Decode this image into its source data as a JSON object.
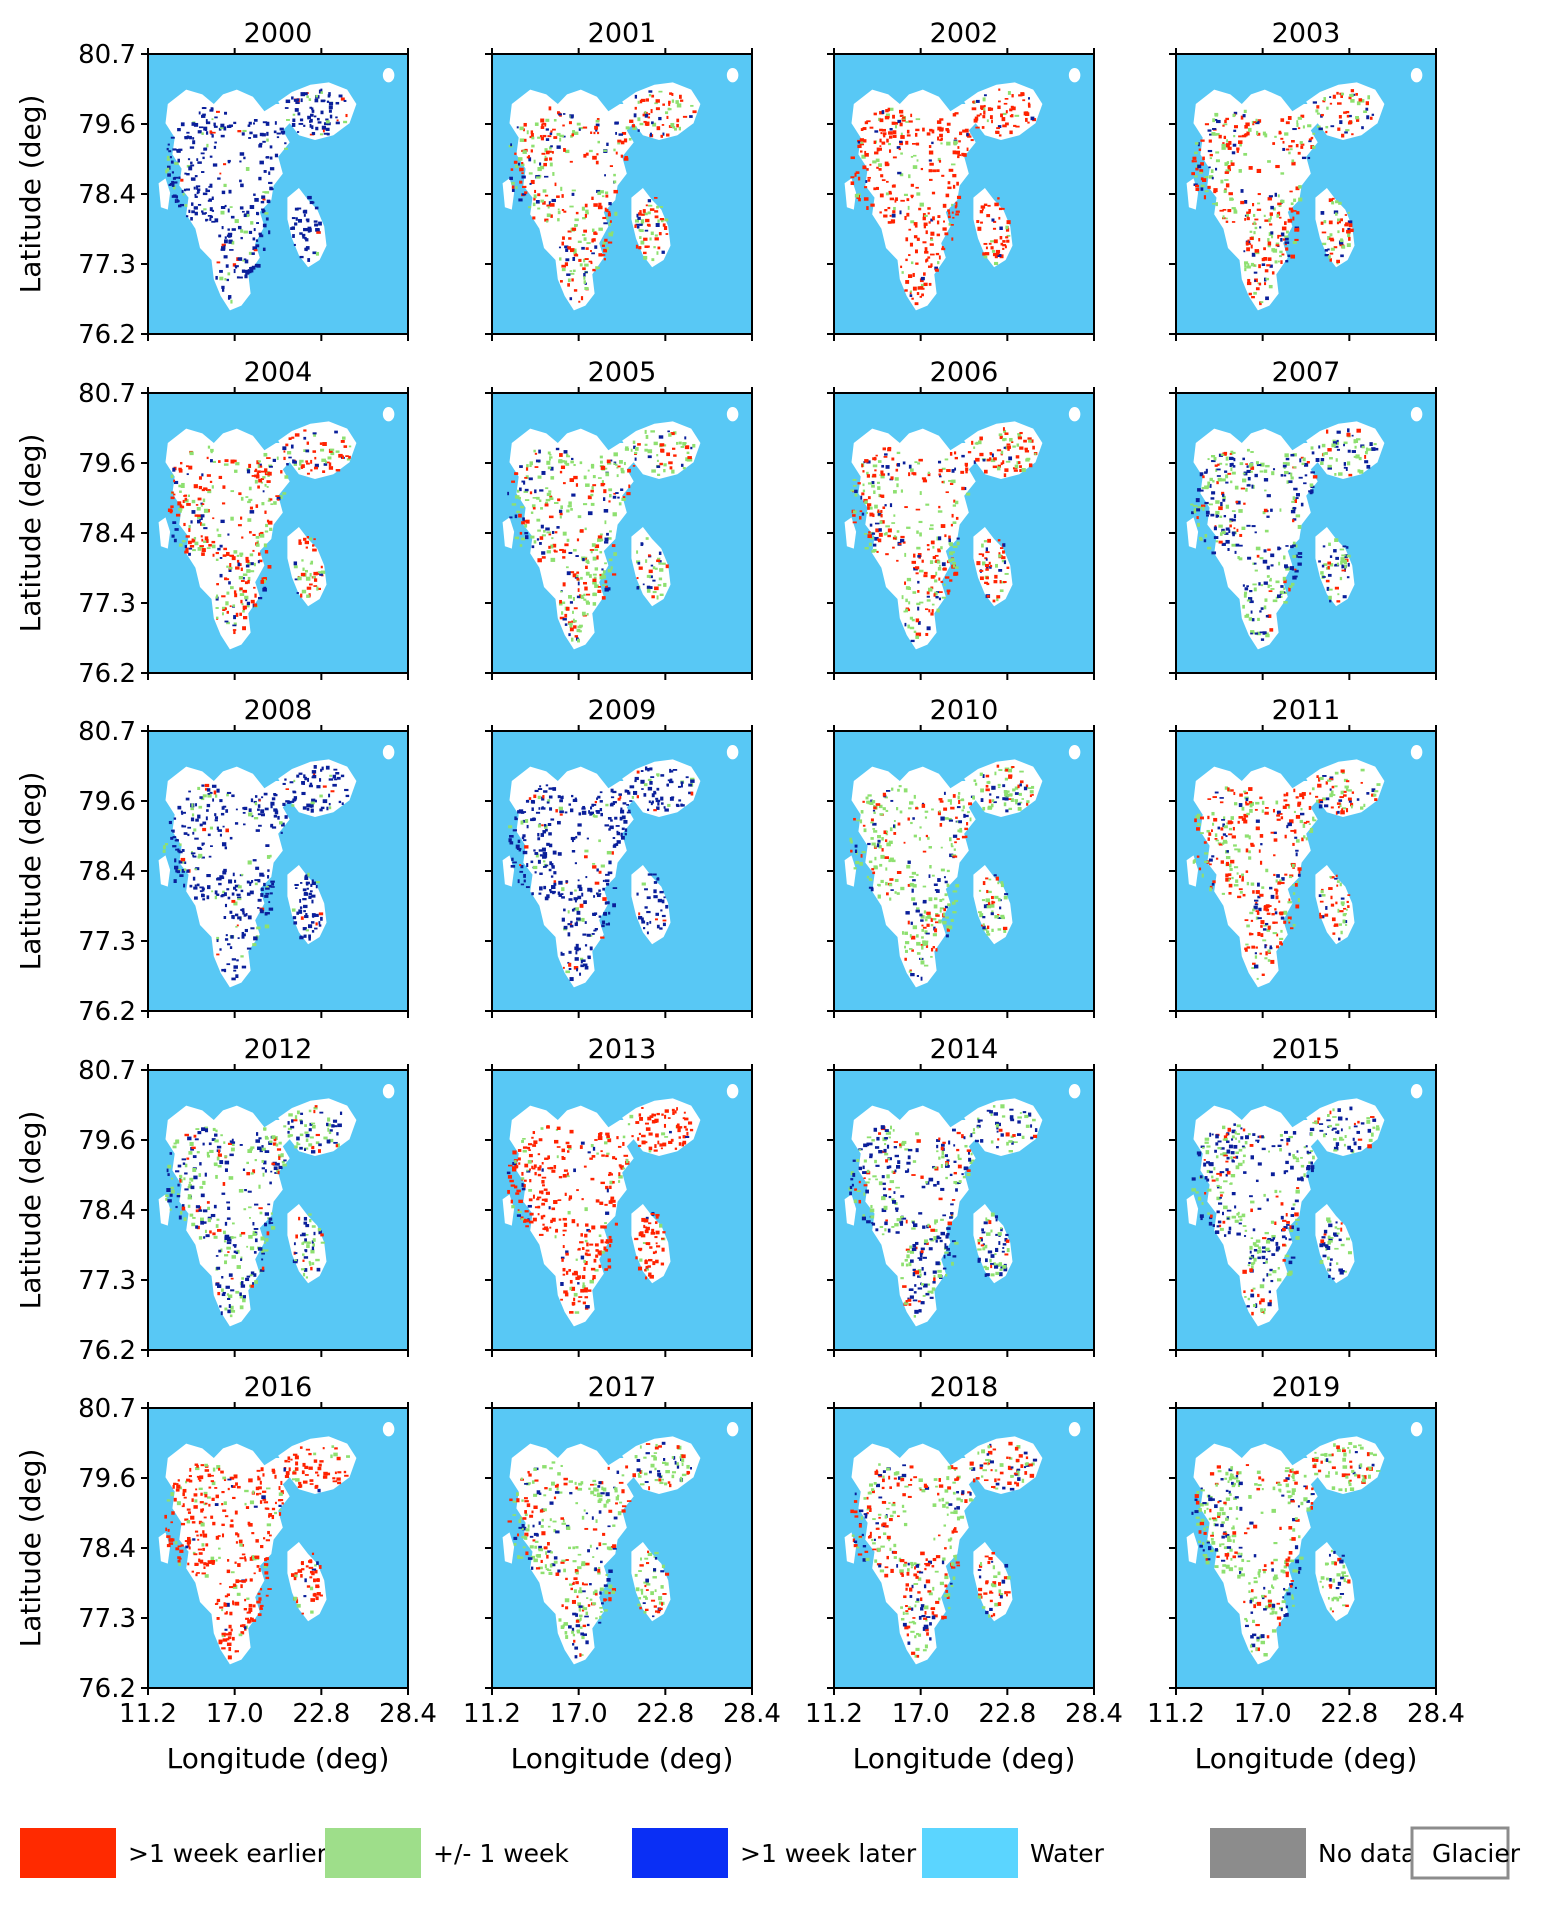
{
  "figure": {
    "legend": [
      {
        "label": ">1 week earlier",
        "color": "#ff2a00"
      },
      {
        "label": "+/- 1 week",
        "color": "#9ede8a"
      },
      {
        "label": ">1 week later",
        "color": "#0a2ff5"
      },
      {
        "label": "Water",
        "color": "#5bd5ff"
      },
      {
        "label": "No data",
        "color": "#8c8c8c"
      },
      {
        "label": "Glacier",
        "color": "#ffffff",
        "outline": "#8c8c8c"
      }
    ],
    "colors": {
      "water": "#58c8f5",
      "land": "#ffffff",
      "earlier": "#ff2200",
      "within": "#8ee070",
      "later": "#0a1f9a"
    }
  },
  "chart_data": {
    "type": "heatmap",
    "xlabel": "Longitude (deg)",
    "ylabel": "Latitude (deg)",
    "xticks": [
      "11.2",
      "17.0",
      "22.8",
      "28.4"
    ],
    "yticks": [
      "80.7",
      "79.6",
      "78.4",
      "77.3",
      "76.2"
    ],
    "xlim": [
      11.2,
      28.4
    ],
    "ylim": [
      76.2,
      80.7
    ],
    "panels": [
      {
        "title": "2000",
        "dominant": "later"
      },
      {
        "title": "2001",
        "dominant": "mixed-earlier"
      },
      {
        "title": "2002",
        "dominant": "earlier"
      },
      {
        "title": "2003",
        "dominant": "mixed-earlier"
      },
      {
        "title": "2004",
        "dominant": "mixed-earlier"
      },
      {
        "title": "2005",
        "dominant": "mixed"
      },
      {
        "title": "2006",
        "dominant": "mixed-earlier"
      },
      {
        "title": "2007",
        "dominant": "mixed-later"
      },
      {
        "title": "2008",
        "dominant": "later"
      },
      {
        "title": "2009",
        "dominant": "later"
      },
      {
        "title": "2010",
        "dominant": "mixed"
      },
      {
        "title": "2011",
        "dominant": "mixed-earlier"
      },
      {
        "title": "2012",
        "dominant": "mixed-later"
      },
      {
        "title": "2013",
        "dominant": "earlier"
      },
      {
        "title": "2014",
        "dominant": "mixed-later"
      },
      {
        "title": "2015",
        "dominant": "mixed-later"
      },
      {
        "title": "2016",
        "dominant": "earlier"
      },
      {
        "title": "2017",
        "dominant": "mixed"
      },
      {
        "title": "2018",
        "dominant": "mixed-earlier"
      },
      {
        "title": "2019",
        "dominant": "mixed"
      }
    ]
  }
}
